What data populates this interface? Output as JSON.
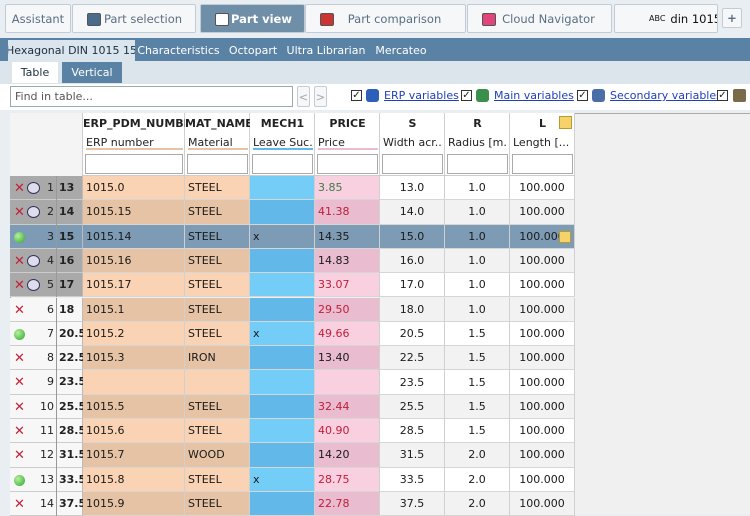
{
  "tabs": [
    {
      "label": "Assistant",
      "active": false
    },
    {
      "label": "Part selection",
      "active": false
    },
    {
      "label": "Part view",
      "active": true
    },
    {
      "label": "Part comparison",
      "active": false
    },
    {
      "label": "Cloud Navigator",
      "active": false
    }
  ],
  "search": {
    "prefix": "ABC",
    "text": "din 1015"
  },
  "add_button": "+",
  "subtabs": [
    {
      "label": "Hexagonal DIN 1015 15",
      "active": true
    },
    {
      "label": "Characteristics",
      "active": false
    },
    {
      "label": "Octopart",
      "active": false
    },
    {
      "label": "Ultra Librarian",
      "active": false
    },
    {
      "label": "Mercateo",
      "active": false
    }
  ],
  "view_tabs": [
    {
      "label": "Table",
      "active": true
    },
    {
      "label": "Vertical",
      "active": false
    }
  ],
  "toolbar": {
    "find_placeholder": "Find in table...",
    "prev": "<",
    "next": ">",
    "toggles": [
      {
        "label": "ERP variables",
        "checked": true
      },
      {
        "label": "Main variables",
        "checked": true
      },
      {
        "label": "Secondary variables",
        "checked": true
      }
    ]
  },
  "table": {
    "columns": [
      {
        "name": "ERP_PDM_NUMBER",
        "description": "ERP number",
        "color": "#f9d3b3",
        "alt_color": "#e6c3a5"
      },
      {
        "name": "MAT_NAME",
        "description": "Material",
        "color": "#f9d3b3",
        "alt_color": "#e6c3a5"
      },
      {
        "name": "MECH1",
        "description": "Leave Suc...",
        "color": "#74cdf6",
        "alt_color": "#62b8e8"
      },
      {
        "name": "PRICE",
        "description": "Price",
        "color": "#f9d0e0",
        "alt_color": "#e9bcd0"
      },
      {
        "name": "S",
        "description": "Width acr...",
        "color": "#ffffff",
        "alt_color": "#f2f2f2"
      },
      {
        "name": "R",
        "description": "Radius [m...",
        "color": "#ffffff",
        "alt_color": "#f2f2f2"
      },
      {
        "name": "L",
        "description": "Length [...",
        "color": "#ffffff",
        "alt_color": "#f2f2f2"
      }
    ],
    "rows": [
      {
        "index": "1",
        "id": "13",
        "status": "error",
        "linked": true,
        "price_color": "#3d7a4a",
        "cells": [
          "1015.0",
          "STEEL",
          null,
          "3.85",
          "13.0",
          "1.0",
          "100.000"
        ]
      },
      {
        "index": "2",
        "id": "14",
        "status": "error",
        "linked": true,
        "price_color": "#c0203a",
        "cells": [
          "1015.15",
          "STEEL",
          null,
          "41.38",
          "14.0",
          "1.0",
          "100.000"
        ]
      },
      {
        "index": "3",
        "id": "15",
        "status": "ok",
        "linked": false,
        "selected": true,
        "price_color": "#1a1a1a",
        "cells": [
          "1015.14",
          "STEEL",
          "x",
          "14.35",
          "15.0",
          "1.0",
          "100.000"
        ]
      },
      {
        "index": "4",
        "id": "16",
        "status": "error",
        "linked": true,
        "price_color": "#1a1a1a",
        "cells": [
          "1015.16",
          "STEEL",
          null,
          "14.83",
          "16.0",
          "1.0",
          "100.000"
        ]
      },
      {
        "index": "5",
        "id": "17",
        "status": "error",
        "linked": true,
        "price_color": "#c0203a",
        "cells": [
          "1015.17",
          "STEEL",
          null,
          "33.07",
          "17.0",
          "1.0",
          "100.000"
        ]
      },
      {
        "index": "6",
        "id": "18",
        "status": "error",
        "linked": false,
        "price_color": "#c0203a",
        "cells": [
          "1015.1",
          "STEEL",
          null,
          "29.50",
          "18.0",
          "1.0",
          "100.000"
        ]
      },
      {
        "index": "7",
        "id": "20.5",
        "status": "ok",
        "linked": false,
        "price_color": "#c0203a",
        "cells": [
          "1015.2",
          "STEEL",
          "x",
          "49.66",
          "20.5",
          "1.5",
          "100.000"
        ]
      },
      {
        "index": "8",
        "id": "22.5",
        "status": "error",
        "linked": false,
        "price_color": "#1a1a1a",
        "cells": [
          "1015.3",
          "IRON",
          null,
          "13.40",
          "22.5",
          "1.5",
          "100.000"
        ]
      },
      {
        "index": "9",
        "id": "23.5",
        "status": "error",
        "linked": false,
        "price_color": "#1a1a1a",
        "cells": [
          null,
          null,
          null,
          null,
          "23.5",
          "1.5",
          "100.000"
        ]
      },
      {
        "index": "10",
        "id": "25.5",
        "status": "error",
        "linked": false,
        "price_color": "#c0203a",
        "cells": [
          "1015.5",
          "STEEL",
          null,
          "32.44",
          "25.5",
          "1.5",
          "100.000"
        ]
      },
      {
        "index": "11",
        "id": "28.5",
        "status": "error",
        "linked": false,
        "price_color": "#c0203a",
        "cells": [
          "1015.6",
          "STEEL",
          null,
          "40.90",
          "28.5",
          "1.5",
          "100.000"
        ]
      },
      {
        "index": "12",
        "id": "31.5",
        "status": "error",
        "linked": false,
        "price_color": "#1a1a1a",
        "cells": [
          "1015.7",
          "WOOD",
          null,
          "14.20",
          "31.5",
          "2.0",
          "100.000"
        ]
      },
      {
        "index": "13",
        "id": "33.5",
        "status": "ok",
        "linked": false,
        "price_color": "#c0203a",
        "cells": [
          "1015.8",
          "STEEL",
          "x",
          "28.75",
          "33.5",
          "2.0",
          "100.000"
        ]
      },
      {
        "index": "14",
        "id": "37.5",
        "status": "error",
        "linked": false,
        "price_color": "#c0203a",
        "cells": [
          "1015.9",
          "STEEL",
          null,
          "22.78",
          "37.5",
          "2.0",
          "100.000"
        ]
      }
    ]
  }
}
